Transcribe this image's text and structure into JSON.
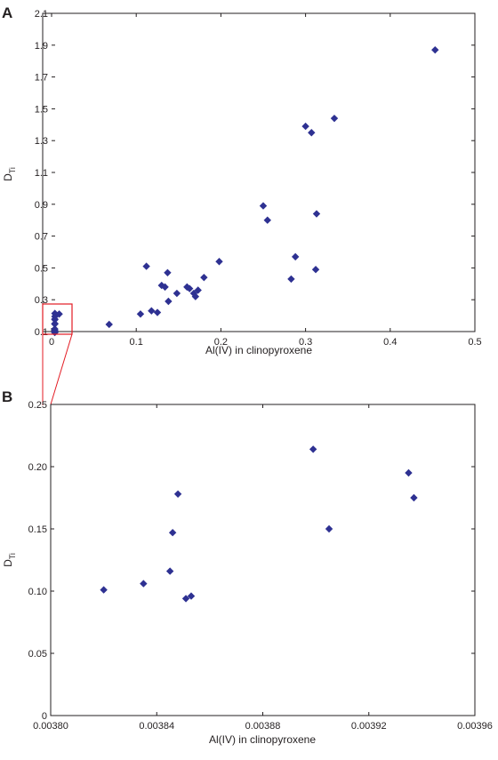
{
  "colors": {
    "marker": "#2e3192",
    "axis": "#231f20",
    "zoom_box": "#e31b23"
  },
  "chart_data": [
    {
      "panel": "A",
      "type": "scatter",
      "xlabel": "Al(IV) in clinopyroxene",
      "ylabel_main": "D",
      "ylabel_sub": "Ti",
      "xlim": [
        0,
        0.5
      ],
      "ylim": [
        0.1,
        2.1
      ],
      "xticks": [
        0,
        0.1,
        0.2,
        0.3,
        0.4,
        0.5
      ],
      "xtick_labels": [
        "0",
        "0.1",
        "0.2",
        "0.3",
        "0.4",
        "0.5"
      ],
      "yticks": [
        0.1,
        0.3,
        0.5,
        0.7,
        0.9,
        1.1,
        1.3,
        1.5,
        1.7,
        1.9,
        2.1
      ],
      "ytick_labels": [
        "0.1",
        "0.3",
        "0.5",
        "0.7",
        "0.9",
        "1.1",
        "1.3",
        "1.5",
        "1.7",
        "1.9",
        "2.1"
      ],
      "grid": false,
      "points": [
        {
          "x": 0.0038,
          "y": 0.101
        },
        {
          "x": 0.0038,
          "y": 0.106
        },
        {
          "x": 0.0038,
          "y": 0.116
        },
        {
          "x": 0.0038,
          "y": 0.147
        },
        {
          "x": 0.0038,
          "y": 0.178
        },
        {
          "x": 0.0039,
          "y": 0.214
        },
        {
          "x": 0.0039,
          "y": 0.195
        },
        {
          "x": 0.0039,
          "y": 0.175
        },
        {
          "x": 0.0039,
          "y": 0.15
        },
        {
          "x": 0.0038,
          "y": 0.094
        },
        {
          "x": 0.0039,
          "y": 0.096
        },
        {
          "x": 0.009,
          "y": 0.21
        },
        {
          "x": 0.068,
          "y": 0.145
        },
        {
          "x": 0.105,
          "y": 0.21
        },
        {
          "x": 0.112,
          "y": 0.51
        },
        {
          "x": 0.118,
          "y": 0.23
        },
        {
          "x": 0.125,
          "y": 0.22
        },
        {
          "x": 0.13,
          "y": 0.39
        },
        {
          "x": 0.134,
          "y": 0.38
        },
        {
          "x": 0.137,
          "y": 0.47
        },
        {
          "x": 0.138,
          "y": 0.29
        },
        {
          "x": 0.148,
          "y": 0.34
        },
        {
          "x": 0.16,
          "y": 0.38
        },
        {
          "x": 0.163,
          "y": 0.37
        },
        {
          "x": 0.168,
          "y": 0.34
        },
        {
          "x": 0.17,
          "y": 0.32
        },
        {
          "x": 0.173,
          "y": 0.36
        },
        {
          "x": 0.18,
          "y": 0.44
        },
        {
          "x": 0.198,
          "y": 0.54
        },
        {
          "x": 0.25,
          "y": 0.89
        },
        {
          "x": 0.255,
          "y": 0.8
        },
        {
          "x": 0.283,
          "y": 0.43
        },
        {
          "x": 0.288,
          "y": 0.57
        },
        {
          "x": 0.3,
          "y": 1.39
        },
        {
          "x": 0.307,
          "y": 1.35
        },
        {
          "x": 0.312,
          "y": 0.49
        },
        {
          "x": 0.313,
          "y": 0.84
        },
        {
          "x": 0.334,
          "y": 1.44
        },
        {
          "x": 0.453,
          "y": 1.87
        }
      ]
    },
    {
      "panel": "B",
      "type": "scatter",
      "xlabel": "Al(IV) in clinopyroxene",
      "ylabel_main": "D",
      "ylabel_sub": "Ti",
      "xlim": [
        0.0038,
        0.00396
      ],
      "ylim": [
        0,
        0.25
      ],
      "xticks": [
        0.0038,
        0.00384,
        0.00388,
        0.00392,
        0.00396
      ],
      "xtick_labels": [
        "0.00380",
        "0.00384",
        "0.00388",
        "0.00392",
        "0.00396"
      ],
      "yticks": [
        0,
        0.05,
        0.1,
        0.15,
        0.2,
        0.25
      ],
      "ytick_labels": [
        "0",
        "0.05",
        "0.10",
        "0.15",
        "0.20",
        "0.25"
      ],
      "grid": false,
      "points": [
        {
          "x": 0.00382,
          "y": 0.101
        },
        {
          "x": 0.003835,
          "y": 0.106
        },
        {
          "x": 0.003845,
          "y": 0.116
        },
        {
          "x": 0.003846,
          "y": 0.147
        },
        {
          "x": 0.003848,
          "y": 0.178
        },
        {
          "x": 0.003851,
          "y": 0.094
        },
        {
          "x": 0.003853,
          "y": 0.096
        },
        {
          "x": 0.003899,
          "y": 0.214
        },
        {
          "x": 0.003905,
          "y": 0.15
        },
        {
          "x": 0.003935,
          "y": 0.195
        },
        {
          "x": 0.003937,
          "y": 0.175
        }
      ]
    }
  ]
}
